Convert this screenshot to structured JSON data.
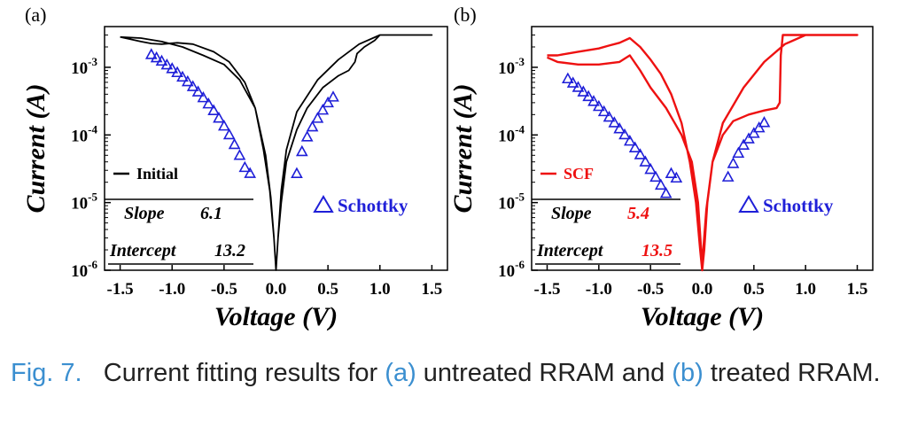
{
  "chart_data": [
    {
      "type": "line",
      "panel_label": "(a)",
      "xlabel": "Voltage (V)",
      "ylabel": "Current (A)",
      "xlim": [
        -1.65,
        1.65
      ],
      "ylim": [
        1e-06,
        0.004
      ],
      "yscale": "log",
      "x_ticks": [
        "-1.5",
        "-1.0",
        "-0.5",
        "0.0",
        "0.5",
        "1.0",
        "1.5"
      ],
      "y_ticks": [
        {
          "base": "10",
          "exp": "-6"
        },
        {
          "base": "10",
          "exp": "-5"
        },
        {
          "base": "10",
          "exp": "-4"
        },
        {
          "base": "10",
          "exp": "-3"
        }
      ],
      "legend": "Initial",
      "series": [
        {
          "name": "Initial",
          "color": "#000000",
          "x": [
            -1.5,
            -1.3,
            -1.2,
            -1.1,
            -0.95,
            -0.8,
            -0.6,
            -0.45,
            -0.3,
            -0.2,
            -0.12,
            -0.06,
            -0.02,
            0.0,
            0.02,
            0.05,
            0.1,
            0.2,
            0.3,
            0.45,
            0.6,
            0.7,
            0.76,
            0.78,
            0.85,
            0.95,
            1.0,
            1.5,
            1.0,
            0.8,
            0.6,
            0.4,
            0.2,
            0.1,
            0.05,
            0.02,
            0.0,
            -0.02,
            -0.05,
            -0.1,
            -0.2,
            -0.35,
            -0.5,
            -0.7,
            -0.9,
            -1.1,
            -1.3,
            -1.5
          ],
          "y": [
            0.0028,
            0.0024,
            0.00225,
            0.0022,
            0.0023,
            0.0022,
            0.0017,
            0.0012,
            0.0006,
            0.00025,
            6e-05,
            1.5e-05,
            3e-06,
            1e-06,
            3e-06,
            1e-05,
            4e-05,
            0.00012,
            0.00025,
            0.0005,
            0.00075,
            0.0009,
            0.0012,
            0.0016,
            0.002,
            0.0025,
            0.003,
            0.003,
            0.003,
            0.0022,
            0.0013,
            0.00065,
            0.00022,
            6e-05,
            1.5e-05,
            3e-06,
            1e-06,
            3e-06,
            1.2e-05,
            5e-05,
            0.00025,
            0.00065,
            0.0011,
            0.0015,
            0.002,
            0.0024,
            0.0027,
            0.0028
          ]
        },
        {
          "name": "Schottky",
          "marker": "triangle",
          "color": "#1f1fd8",
          "x": [
            -1.2,
            -1.15,
            -1.1,
            -1.05,
            -1.0,
            -0.95,
            -0.9,
            -0.85,
            -0.8,
            -0.75,
            -0.7,
            -0.65,
            -0.6,
            -0.55,
            -0.5,
            -0.45,
            -0.4,
            -0.35,
            -0.3,
            -0.25,
            0.2,
            0.25,
            0.3,
            0.35,
            0.4,
            0.45,
            0.5,
            0.55
          ],
          "y": [
            0.00155,
            0.00139,
            0.00124,
            0.00109,
            0.00096,
            0.00084,
            0.00072,
            0.000616,
            0.000521,
            0.000435,
            0.000357,
            0.000289,
            0.00023,
            0.000178,
            0.000136,
            0.000101,
            7.25e-05,
            5.01e-05,
            3.32e-05,
            2.71e-05,
            2.7e-05,
            5.7e-05,
            9.4e-05,
            0.000132,
            0.000177,
            0.000234,
            0.0003,
            0.000365
          ]
        }
      ],
      "schottky_label": "Schottky",
      "fit": {
        "slope_label": "Slope",
        "slope_value": "6.1",
        "intercept_label": "Intercept",
        "intercept_value": "13.2",
        "value_color": "#000000"
      }
    },
    {
      "type": "line",
      "panel_label": "(b)",
      "xlabel": "Voltage (V)",
      "ylabel": "Current (A)",
      "xlim": [
        -1.65,
        1.65
      ],
      "ylim": [
        1e-06,
        0.004
      ],
      "yscale": "log",
      "x_ticks": [
        "-1.5",
        "-1.0",
        "-0.5",
        "0.0",
        "0.5",
        "1.0",
        "1.5"
      ],
      "y_ticks": [
        {
          "base": "10",
          "exp": "-6"
        },
        {
          "base": "10",
          "exp": "-5"
        },
        {
          "base": "10",
          "exp": "-4"
        },
        {
          "base": "10",
          "exp": "-3"
        }
      ],
      "legend": "SCF",
      "series": [
        {
          "name": "SCF",
          "color": "#ee1111",
          "x": [
            -1.5,
            -1.4,
            -1.3,
            -1.2,
            -1.0,
            -0.9,
            -0.8,
            -0.7,
            -0.6,
            -0.5,
            -0.4,
            -0.3,
            -0.2,
            -0.12,
            -0.06,
            -0.02,
            0.0,
            0.02,
            0.05,
            0.1,
            0.2,
            0.3,
            0.45,
            0.6,
            0.72,
            0.75,
            0.76,
            0.78,
            1.0,
            1.5,
            1.0,
            0.8,
            0.6,
            0.4,
            0.2,
            0.1,
            0.04,
            0.01,
            0.0,
            -0.01,
            -0.04,
            -0.1,
            -0.2,
            -0.35,
            -0.5,
            -0.6,
            -0.7,
            -0.8,
            -1.0,
            -1.2,
            -1.4,
            -1.5
          ],
          "y": [
            0.0015,
            0.0015,
            0.0016,
            0.0017,
            0.0019,
            0.0021,
            0.0023,
            0.0027,
            0.002,
            0.0013,
            0.0008,
            0.0004,
            0.00015,
            4e-05,
            1e-05,
            2e-06,
            1e-06,
            2e-06,
            1e-05,
            4e-05,
            0.0001,
            0.00016,
            0.0002,
            0.00023,
            0.00025,
            0.0003,
            0.0015,
            0.003,
            0.003,
            0.003,
            0.003,
            0.0022,
            0.0012,
            0.0005,
            0.00015,
            4e-05,
            8e-06,
            2e-06,
            1e-06,
            2e-06,
            1e-05,
            4e-05,
            0.0001,
            0.00025,
            0.0005,
            0.0009,
            0.0015,
            0.0012,
            0.0011,
            0.0011,
            0.0012,
            0.0014
          ]
        },
        {
          "name": "Schottky",
          "marker": "triangle",
          "color": "#1f1fd8",
          "x": [
            -1.3,
            -1.25,
            -1.2,
            -1.15,
            -1.1,
            -1.05,
            -1.0,
            -0.95,
            -0.9,
            -0.85,
            -0.8,
            -0.75,
            -0.7,
            -0.65,
            -0.6,
            -0.55,
            -0.5,
            -0.45,
            -0.4,
            -0.35,
            -0.3,
            -0.25,
            0.25,
            0.3,
            0.35,
            0.4,
            0.45,
            0.5,
            0.55,
            0.6
          ],
          "y": [
            0.00068,
            0.000588,
            0.000507,
            0.000435,
            0.000371,
            0.000315,
            0.000265,
            0.000222,
            0.000184,
            0.000152,
            0.000124,
            0.000101,
            8.14e-05,
            6.49e-05,
            5.13e-05,
            4.02e-05,
            3.11e-05,
            2.39e-05,
            1.82e-05,
            1.37e-05,
            2.7e-05,
            2.32e-05,
            2.4e-05,
            3.8e-05,
            5.4e-05,
            7.1e-05,
            8.8e-05,
            0.000106,
            0.000128,
            0.000153
          ]
        }
      ],
      "schottky_label": "Schottky",
      "fit": {
        "slope_label": "Slope",
        "slope_value": "5.4",
        "intercept_label": "Intercept",
        "intercept_value": "13.5",
        "value_color": "#ee1111"
      }
    }
  ],
  "caption": {
    "fig": "Fig. 7.",
    "t1": "Current fitting results for",
    "a": "(a)",
    "t2": "untreated RRAM and",
    "b": "(b)",
    "t3": "treated RRAM."
  }
}
